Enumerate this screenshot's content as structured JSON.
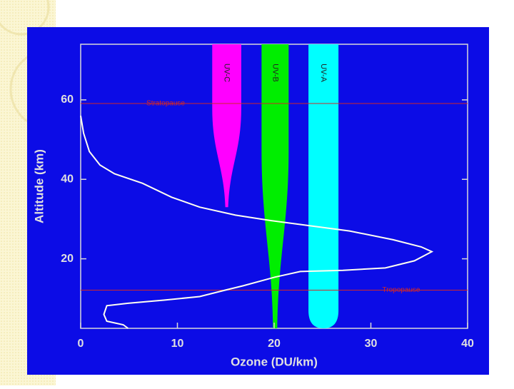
{
  "chart_data": {
    "type": "line",
    "xlabel": "Ozone (DU/km)",
    "ylabel": "Altitude (km)",
    "xlim": [
      0,
      40
    ],
    "ylim": [
      2.5,
      74
    ],
    "xticks": [
      0,
      10,
      20,
      30,
      40
    ],
    "yticks": [
      20,
      40,
      60
    ],
    "series": [
      {
        "color": "#fffff0",
        "x": [
          0,
          0.3,
          0.9,
          2,
          3.5,
          6.4,
          9.4,
          12.3,
          16,
          19.7,
          23.4,
          27.8,
          32.3,
          35.2,
          36.3,
          34.5,
          31.5,
          27.1,
          22.7,
          20.1,
          16.8,
          14.9,
          12.3,
          8.6,
          4.9,
          2.7,
          2.4,
          2.7,
          4.4,
          4.9
        ],
        "values": [
          56,
          51.6,
          47,
          43.6,
          41.4,
          39,
          35.5,
          33,
          31,
          29.6,
          28.4,
          27,
          24.8,
          23,
          21.8,
          19.5,
          17.7,
          17.1,
          16.8,
          15.4,
          13.2,
          12.1,
          10.5,
          9.6,
          8.8,
          8.2,
          6,
          4.3,
          3.4,
          2.5
        ]
      }
    ],
    "reference_lines": [
      {
        "label": "Stratopause",
        "value": 59.1,
        "color": "#d02828"
      },
      {
        "label": "Tropopause",
        "value": 12.1,
        "color": "#d02828"
      }
    ],
    "bands": [
      {
        "name": "UV-C",
        "color": "#ff00ff",
        "x": 15.1,
        "half_width": 1.5,
        "min_altitude": 33
      },
      {
        "name": "UV-B",
        "color": "#00ee00",
        "x": 20.1,
        "half_width": 1.4,
        "min_altitude": 2.5
      },
      {
        "name": "UV-A",
        "color": "#00ffff",
        "x": 25.1,
        "half_width": 1.55,
        "min_altitude": 2.5
      }
    ]
  }
}
